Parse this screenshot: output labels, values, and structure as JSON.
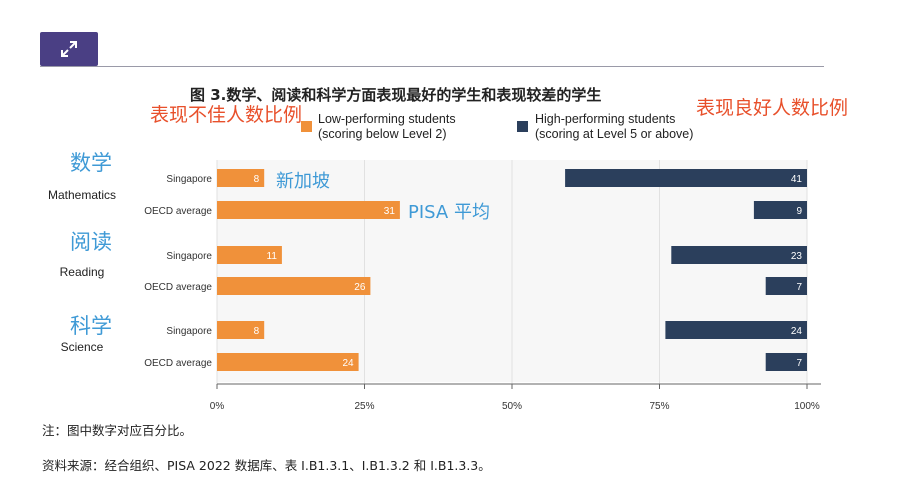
{
  "toolbar": {
    "expand_icon": "expand-arrows-icon"
  },
  "chart_data": {
    "type": "bar",
    "title": "图 3.数学、阅读和科学方面表现最好的学生和表现较差的学生",
    "legend": [
      {
        "name": "Low-performing students",
        "sub": "(scoring below Level 2)",
        "color": "#f0913a"
      },
      {
        "name": "High-performing students",
        "sub": "(scoring at Level 5 or above)",
        "color": "#2b3f5c"
      }
    ],
    "groups": [
      {
        "label_en": "Mathematics",
        "label_cn": "数学"
      },
      {
        "label_en": "Reading",
        "label_cn": "阅读"
      },
      {
        "label_en": "Science",
        "label_cn": "科学"
      }
    ],
    "categories": [
      "Singapore",
      "OECD average",
      "Singapore",
      "OECD average",
      "Singapore",
      "OECD average"
    ],
    "series": [
      {
        "name": "Low-performing students",
        "values": [
          8,
          31,
          11,
          26,
          8,
          24
        ],
        "anchor": "left"
      },
      {
        "name": "High-performing students",
        "values": [
          41,
          9,
          23,
          7,
          24,
          7
        ],
        "anchor": "right"
      }
    ],
    "xlim": [
      0,
      100
    ],
    "xticks": [
      "0%",
      "25%",
      "50%",
      "75%",
      "100%"
    ],
    "annotations": {
      "left_header": "表现不佳人数比例",
      "right_header": "表现良好人数比例",
      "singapore_cn": "新加坡",
      "oecd_cn": "PISA 平均"
    }
  },
  "notes": {
    "note": "注：图中数字对应百分比。",
    "source": "资料来源：经合组织、PISA 2022 数据库、表 I.B1.3.1、I.B1.3.2 和 I.B1.3.3。"
  }
}
